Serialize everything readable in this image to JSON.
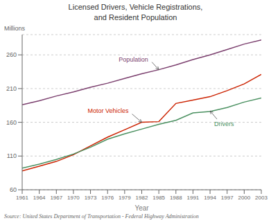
{
  "chart_data": {
    "type": "line",
    "title": "Licensed Drivers, Vehicle Registrations,\nand Resident Population",
    "x_label": "Year",
    "y_label": "Millions",
    "source": "Source: United States Department of Transportation - Federal Highway Administration",
    "x": [
      1961,
      1964,
      1967,
      1970,
      1973,
      1976,
      1979,
      1982,
      1985,
      1988,
      1991,
      1994,
      1997,
      2000,
      2003
    ],
    "series": [
      {
        "name": "Population",
        "color": "#7b3f6e",
        "values": [
          186,
          192,
          199,
          205,
          212,
          218,
          225,
          232,
          238,
          245,
          253,
          260,
          268,
          276,
          282
        ]
      },
      {
        "name": "Motor Vehicles",
        "color": "#cc2200",
        "values": [
          88,
          95,
          102,
          112,
          125,
          138,
          149,
          160,
          161,
          188,
          193,
          198,
          207,
          217,
          231
        ]
      },
      {
        "name": "Drivers",
        "color": "#4a9060",
        "values": [
          92,
          98,
          105,
          113,
          123,
          135,
          143,
          150,
          157,
          163,
          174,
          176,
          182,
          190,
          196
        ]
      }
    ],
    "annotations": [
      {
        "text": "Population",
        "x": 1985,
        "y": 238
      },
      {
        "text": "Motor Vehicles",
        "x": 1982,
        "y": 160
      },
      {
        "text": "Drivers",
        "x": 1994,
        "y": 177
      }
    ],
    "xlim": [
      1961,
      2003
    ],
    "xticks": [
      1961,
      1964,
      1967,
      1970,
      1973,
      1976,
      1979,
      1982,
      1985,
      1988,
      1991,
      1994,
      1997,
      2000,
      2003
    ],
    "ylim": [
      60,
      290
    ],
    "yticks": [
      60,
      110,
      160,
      210,
      260
    ],
    "grid": true
  }
}
